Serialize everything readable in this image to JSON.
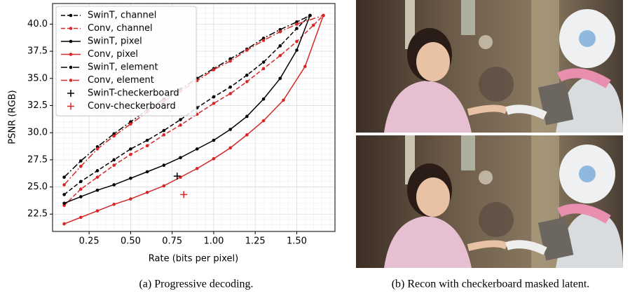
{
  "chart_data": {
    "type": "line",
    "xlabel": "Rate (bits per pixel)",
    "ylabel": "PSNR (RGB)",
    "xlim": [
      0.03,
      1.73
    ],
    "ylim": [
      20.9,
      41.9
    ],
    "xticks": [
      0.25,
      {
        "value": 0.5,
        "label": "0.50"
      },
      0.75,
      {
        "value": 1.0,
        "label": "1.00"
      },
      1.25,
      {
        "value": 1.5,
        "label": "1.50"
      }
    ],
    "yticks": [
      22.5,
      {
        "value": 25,
        "label": "25.0"
      },
      27.5,
      {
        "value": 30,
        "label": "30.0"
      },
      32.5,
      {
        "value": 35,
        "label": "35.0"
      },
      37.5,
      {
        "value": 40,
        "label": "40.0"
      }
    ],
    "grid": true,
    "minor_grid": true,
    "legend": "upper left",
    "series": [
      {
        "name": "SwinT, channel",
        "color": "#000000",
        "linestyle": "dashed",
        "marker": "dot",
        "x": [
          0.1,
          0.2,
          0.3,
          0.4,
          0.5,
          0.6,
          0.7,
          0.8,
          0.9,
          1.0,
          1.1,
          1.2,
          1.3,
          1.4,
          1.5,
          1.58
        ],
        "values": [
          24.3,
          25.5,
          26.5,
          27.5,
          28.5,
          29.3,
          30.2,
          31.2,
          32.3,
          33.3,
          34.2,
          35.3,
          36.5,
          38.0,
          39.6,
          40.8
        ]
      },
      {
        "name": "Conv, channel",
        "color": "#d62728",
        "linestyle": "dashed",
        "marker": "dot",
        "x": [
          0.1,
          0.2,
          0.3,
          0.4,
          0.5,
          0.6,
          0.7,
          0.8,
          0.9,
          1.0,
          1.1,
          1.2,
          1.3,
          1.4,
          1.5,
          1.6,
          1.66
        ],
        "values": [
          23.3,
          24.8,
          25.9,
          27.0,
          28.0,
          28.8,
          29.8,
          30.7,
          31.7,
          32.7,
          33.6,
          34.7,
          35.9,
          37.1,
          38.4,
          39.9,
          40.8
        ]
      },
      {
        "name": "SwinT, pixel",
        "color": "#000000",
        "linestyle": "solid",
        "marker": "dot",
        "x": [
          0.1,
          0.2,
          0.3,
          0.4,
          0.5,
          0.6,
          0.7,
          0.8,
          0.9,
          1.0,
          1.1,
          1.2,
          1.3,
          1.4,
          1.5,
          1.58
        ],
        "values": [
          23.5,
          24.1,
          24.7,
          25.2,
          25.8,
          26.4,
          27.0,
          27.7,
          28.5,
          29.3,
          30.3,
          31.5,
          33.1,
          35.0,
          37.6,
          40.8
        ]
      },
      {
        "name": "Conv, pixel",
        "color": "#d62728",
        "linestyle": "solid",
        "marker": "dot",
        "x": [
          0.1,
          0.2,
          0.3,
          0.4,
          0.5,
          0.6,
          0.7,
          0.8,
          0.9,
          1.0,
          1.1,
          1.2,
          1.3,
          1.42,
          1.55,
          1.66
        ],
        "values": [
          21.6,
          22.2,
          22.8,
          23.4,
          23.9,
          24.5,
          25.1,
          25.9,
          26.7,
          27.6,
          28.6,
          29.8,
          31.1,
          33.0,
          36.1,
          40.8
        ]
      },
      {
        "name": "SwinT, element",
        "color": "#000000",
        "linestyle": "dashdot",
        "marker": "dot",
        "x": [
          0.1,
          0.2,
          0.3,
          0.4,
          0.5,
          0.6,
          0.7,
          0.8,
          0.9,
          1.0,
          1.1,
          1.2,
          1.3,
          1.4,
          1.5,
          1.58
        ],
        "values": [
          25.9,
          27.4,
          28.7,
          29.9,
          31.0,
          32.1,
          33.1,
          34.0,
          35.0,
          35.9,
          36.8,
          37.7,
          38.7,
          39.5,
          40.2,
          40.8
        ]
      },
      {
        "name": "Conv, element",
        "color": "#d62728",
        "linestyle": "dashdot",
        "marker": "dot",
        "x": [
          0.1,
          0.2,
          0.3,
          0.4,
          0.5,
          0.6,
          0.7,
          0.8,
          0.9,
          1.0,
          1.1,
          1.2,
          1.3,
          1.4,
          1.5,
          1.66
        ],
        "values": [
          25.2,
          26.9,
          28.5,
          29.7,
          30.8,
          31.9,
          32.9,
          33.8,
          34.8,
          35.8,
          36.6,
          37.6,
          38.5,
          39.3,
          40.0,
          40.8
        ]
      },
      {
        "name": "SwinT-checkerboard",
        "color": "#000000",
        "linestyle": "none",
        "marker": "plus",
        "x": [
          0.78
        ],
        "values": [
          26.0
        ]
      },
      {
        "name": "Conv-checkerboard",
        "color": "#d62728",
        "linestyle": "none",
        "marker": "plus",
        "x": [
          0.82
        ],
        "values": [
          24.3
        ]
      }
    ]
  },
  "captions": [
    "(a) Progressive decoding.",
    "(b) Recon with checkerboard masked latent."
  ]
}
